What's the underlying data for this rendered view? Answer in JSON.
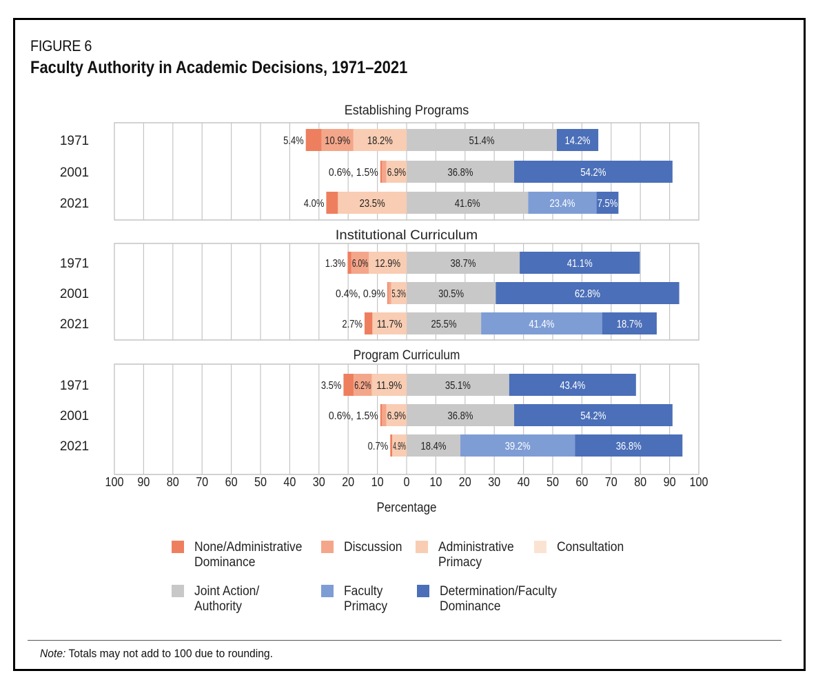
{
  "figure_label": "FIGURE 6",
  "title": "Faculty Authority in Academic Decisions, 1971–2021",
  "note_prefix": "Note:",
  "note_text": " Totals may not add to 100 due to rounding.",
  "colors": {
    "none_admin_dominance": "#ee7f5e",
    "discussion": "#f4a68a",
    "admin_primacy": "#f8cdb3",
    "consultation": "#fbe3d3",
    "joint_action": "#c8c8c8",
    "faculty_primacy": "#7e9dd5",
    "determination": "#4b6fb8"
  },
  "chart_data": {
    "type": "bar",
    "orientation": "horizontal",
    "stacking": "diverging",
    "xlabel": "Percentage",
    "xlim": [
      -100,
      100
    ],
    "xticks": [
      -100,
      -90,
      -80,
      -70,
      -60,
      -50,
      -40,
      -30,
      -20,
      -10,
      0,
      10,
      20,
      30,
      40,
      50,
      60,
      70,
      80,
      90,
      100
    ],
    "xtick_labels": [
      "100",
      "90",
      "80",
      "70",
      "60",
      "50",
      "40",
      "30",
      "20",
      "10",
      "0",
      "10",
      "20",
      "30",
      "40",
      "50",
      "60",
      "70",
      "80",
      "90",
      "100"
    ],
    "categories_legend": [
      "None/Administrative\nDominance",
      "Discussion",
      "Administrative\nPrimacy",
      "Consultation",
      "Joint Action/\nAuthority",
      "Faculty\nPrimacy",
      "Determination/Faculty\nDominance"
    ],
    "panels": [
      {
        "title": "Establishing Programs",
        "rows": [
          {
            "year": "1971",
            "segments": [
              {
                "key": "none_admin_dominance",
                "value": 5.4,
                "label": "5.4%",
                "label_pos": "outside"
              },
              {
                "key": "discussion",
                "value": 10.9,
                "label": "10.9%"
              },
              {
                "key": "admin_primacy",
                "value": 18.2,
                "label": "18.2%"
              },
              {
                "key": "consultation",
                "value": 0,
                "label": ""
              },
              {
                "key": "joint_action",
                "value": 51.4,
                "label": "51.4%"
              },
              {
                "key": "faculty_primacy",
                "value": 0,
                "label": ""
              },
              {
                "key": "determination",
                "value": 14.2,
                "label": "14.2%"
              }
            ]
          },
          {
            "year": "2001",
            "segments": [
              {
                "key": "none_admin_dominance",
                "value": 0.6,
                "label": "",
                "label_pos": "outside"
              },
              {
                "key": "discussion",
                "value": 1.5,
                "label": ""
              },
              {
                "key": "admin_primacy",
                "value": 6.9,
                "label": "6.9%"
              },
              {
                "key": "consultation",
                "value": 0,
                "label": ""
              },
              {
                "key": "joint_action",
                "value": 36.8,
                "label": "36.8%"
              },
              {
                "key": "faculty_primacy",
                "value": 0,
                "label": ""
              },
              {
                "key": "determination",
                "value": 54.2,
                "label": "54.2%"
              }
            ],
            "outside_label": "0.6%, 1.5%"
          },
          {
            "year": "2021",
            "segments": [
              {
                "key": "none_admin_dominance",
                "value": 4.0,
                "label": "4.0%",
                "label_pos": "outside"
              },
              {
                "key": "discussion",
                "value": 0,
                "label": ""
              },
              {
                "key": "admin_primacy",
                "value": 23.5,
                "label": "23.5%"
              },
              {
                "key": "consultation",
                "value": 0,
                "label": ""
              },
              {
                "key": "joint_action",
                "value": 41.6,
                "label": "41.6%"
              },
              {
                "key": "faculty_primacy",
                "value": 23.4,
                "label": "23.4%"
              },
              {
                "key": "determination",
                "value": 7.5,
                "label": "7.5%"
              }
            ]
          }
        ]
      },
      {
        "title": "Institutional Curriculum",
        "rows": [
          {
            "year": "1971",
            "segments": [
              {
                "key": "none_admin_dominance",
                "value": 1.3,
                "label": "1.3%",
                "label_pos": "outside"
              },
              {
                "key": "discussion",
                "value": 6.0,
                "label": "6.0%"
              },
              {
                "key": "admin_primacy",
                "value": 12.9,
                "label": "12.9%"
              },
              {
                "key": "consultation",
                "value": 0,
                "label": ""
              },
              {
                "key": "joint_action",
                "value": 38.7,
                "label": "38.7%"
              },
              {
                "key": "faculty_primacy",
                "value": 0,
                "label": ""
              },
              {
                "key": "determination",
                "value": 41.1,
                "label": "41.1%"
              }
            ]
          },
          {
            "year": "2001",
            "segments": [
              {
                "key": "none_admin_dominance",
                "value": 0.4,
                "label": "",
                "label_pos": "outside"
              },
              {
                "key": "discussion",
                "value": 0.9,
                "label": ""
              },
              {
                "key": "admin_primacy",
                "value": 5.3,
                "label": "5.3%"
              },
              {
                "key": "consultation",
                "value": 0,
                "label": ""
              },
              {
                "key": "joint_action",
                "value": 30.5,
                "label": "30.5%"
              },
              {
                "key": "faculty_primacy",
                "value": 0,
                "label": ""
              },
              {
                "key": "determination",
                "value": 62.8,
                "label": "62.8%"
              }
            ],
            "outside_label": "0.4%, 0.9%"
          },
          {
            "year": "2021",
            "segments": [
              {
                "key": "none_admin_dominance",
                "value": 2.7,
                "label": "2.7%",
                "label_pos": "outside"
              },
              {
                "key": "discussion",
                "value": 0,
                "label": ""
              },
              {
                "key": "admin_primacy",
                "value": 11.7,
                "label": "11.7%"
              },
              {
                "key": "consultation",
                "value": 0,
                "label": ""
              },
              {
                "key": "joint_action",
                "value": 25.5,
                "label": "25.5%"
              },
              {
                "key": "faculty_primacy",
                "value": 41.4,
                "label": "41.4%"
              },
              {
                "key": "determination",
                "value": 18.7,
                "label": "18.7%"
              }
            ]
          }
        ]
      },
      {
        "title": "Program Curriculum",
        "rows": [
          {
            "year": "1971",
            "segments": [
              {
                "key": "none_admin_dominance",
                "value": 3.5,
                "label": "3.5%",
                "label_pos": "outside"
              },
              {
                "key": "discussion",
                "value": 6.2,
                "label": "6.2%"
              },
              {
                "key": "admin_primacy",
                "value": 11.9,
                "label": "11.9%"
              },
              {
                "key": "consultation",
                "value": 0,
                "label": ""
              },
              {
                "key": "joint_action",
                "value": 35.1,
                "label": "35.1%"
              },
              {
                "key": "faculty_primacy",
                "value": 0,
                "label": ""
              },
              {
                "key": "determination",
                "value": 43.4,
                "label": "43.4%"
              }
            ]
          },
          {
            "year": "2001",
            "segments": [
              {
                "key": "none_admin_dominance",
                "value": 0.6,
                "label": "",
                "label_pos": "outside"
              },
              {
                "key": "discussion",
                "value": 1.5,
                "label": ""
              },
              {
                "key": "admin_primacy",
                "value": 6.9,
                "label": "6.9%"
              },
              {
                "key": "consultation",
                "value": 0,
                "label": ""
              },
              {
                "key": "joint_action",
                "value": 36.8,
                "label": "36.8%"
              },
              {
                "key": "faculty_primacy",
                "value": 0,
                "label": ""
              },
              {
                "key": "determination",
                "value": 54.2,
                "label": "54.2%"
              }
            ],
            "outside_label": "0.6%, 1.5%"
          },
          {
            "year": "2021",
            "segments": [
              {
                "key": "none_admin_dominance",
                "value": 0.7,
                "label": "0.7%",
                "label_pos": "outside"
              },
              {
                "key": "discussion",
                "value": 0,
                "label": ""
              },
              {
                "key": "admin_primacy",
                "value": 4.9,
                "label": "4.9%"
              },
              {
                "key": "consultation",
                "value": 0,
                "label": ""
              },
              {
                "key": "joint_action",
                "value": 18.4,
                "label": "18.4%"
              },
              {
                "key": "faculty_primacy",
                "value": 39.2,
                "label": "39.2%"
              },
              {
                "key": "determination",
                "value": 36.8,
                "label": "36.8%"
              }
            ]
          }
        ]
      }
    ],
    "grid": true,
    "legend_position": "bottom"
  }
}
